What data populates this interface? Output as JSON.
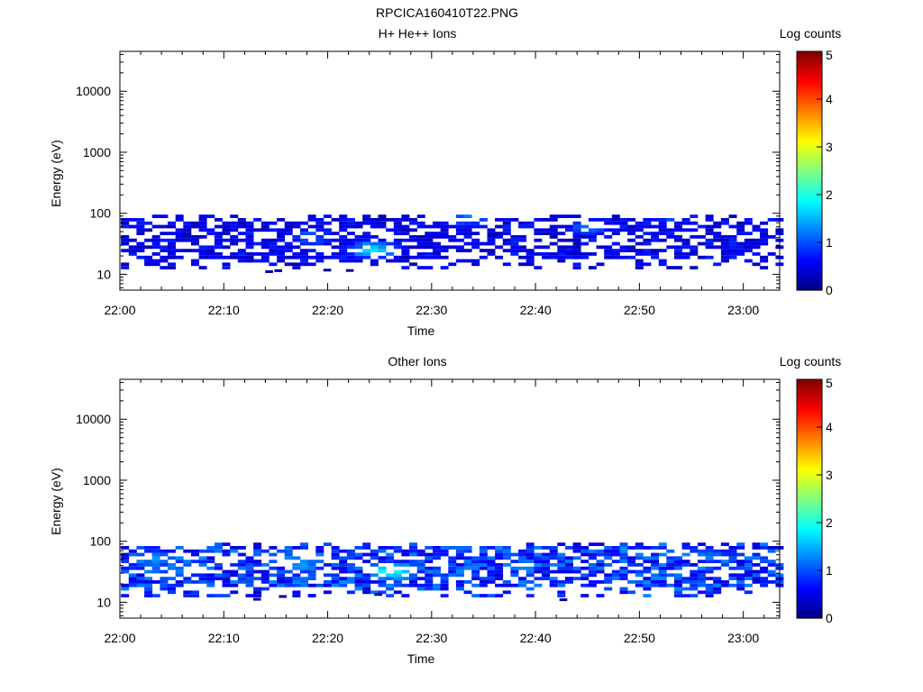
{
  "figure_title": "RPCICA160410T22.PNG",
  "chart_data": [
    {
      "type": "heatmap",
      "title": "H+ He++ Ions",
      "xlabel": "Time",
      "ylabel": "Energy (eV)",
      "x_tick_labels": [
        "22:00",
        "22:10",
        "22:20",
        "22:30",
        "22:40",
        "22:50",
        "23:00"
      ],
      "x_ticks_minutes": [
        0,
        10,
        20,
        30,
        40,
        50,
        60
      ],
      "xlim_minutes": [
        0,
        63.5
      ],
      "yscale": "log",
      "ylim": [
        5.5,
        45000
      ],
      "y_tick_labels": [
        "10",
        "100",
        "1000",
        "10000"
      ],
      "y_ticks": [
        10,
        100,
        1000,
        10000
      ],
      "colorbar": {
        "title": "Log counts",
        "range": [
          0,
          5
        ],
        "tick_labels": [
          "0",
          "1",
          "2",
          "3",
          "4",
          "5"
        ]
      },
      "data_band_energy_eV": [
        12,
        95
      ],
      "peak_log_counts": 2.0,
      "description_values": {
        "typical_log_counts": 0.6,
        "intense_region_minutes": [
          22,
          27
        ]
      },
      "seed": 7,
      "hotspots": [
        {
          "t": 24,
          "e": 25,
          "v": 1.9
        },
        {
          "t": 33,
          "e": 85,
          "v": 1.5
        },
        {
          "t": 18,
          "e": 40,
          "v": 1.3
        },
        {
          "t": 45,
          "e": 60,
          "v": 1.3
        },
        {
          "t": 53,
          "e": 90,
          "v": 1.2
        }
      ]
    },
    {
      "type": "heatmap",
      "title": "Other Ions",
      "xlabel": "Time",
      "ylabel": "Energy (eV)",
      "x_tick_labels": [
        "22:00",
        "22:10",
        "22:20",
        "22:30",
        "22:40",
        "22:50",
        "23:00"
      ],
      "x_ticks_minutes": [
        0,
        10,
        20,
        30,
        40,
        50,
        60
      ],
      "xlim_minutes": [
        0,
        63.5
      ],
      "yscale": "log",
      "ylim": [
        5.5,
        45000
      ],
      "y_tick_labels": [
        "10",
        "100",
        "1000",
        "10000"
      ],
      "y_ticks": [
        10,
        100,
        1000,
        10000
      ],
      "colorbar": {
        "title": "Log counts",
        "range": [
          0,
          5
        ],
        "tick_labels": [
          "0",
          "1",
          "2",
          "3",
          "4",
          "5"
        ]
      },
      "data_band_energy_eV": [
        12,
        95
      ],
      "peak_log_counts": 2.3,
      "description_values": {
        "typical_log_counts": 1.0,
        "intense_region_minutes": [
          15,
          27
        ]
      },
      "seed": 23,
      "hotspots": [
        {
          "t": 26,
          "e": 32,
          "v": 2.3
        },
        {
          "t": 17,
          "e": 45,
          "v": 1.8
        },
        {
          "t": 3,
          "e": 50,
          "v": 1.6
        },
        {
          "t": 33,
          "e": 80,
          "v": 1.5
        },
        {
          "t": 56,
          "e": 60,
          "v": 1.4
        }
      ]
    }
  ]
}
